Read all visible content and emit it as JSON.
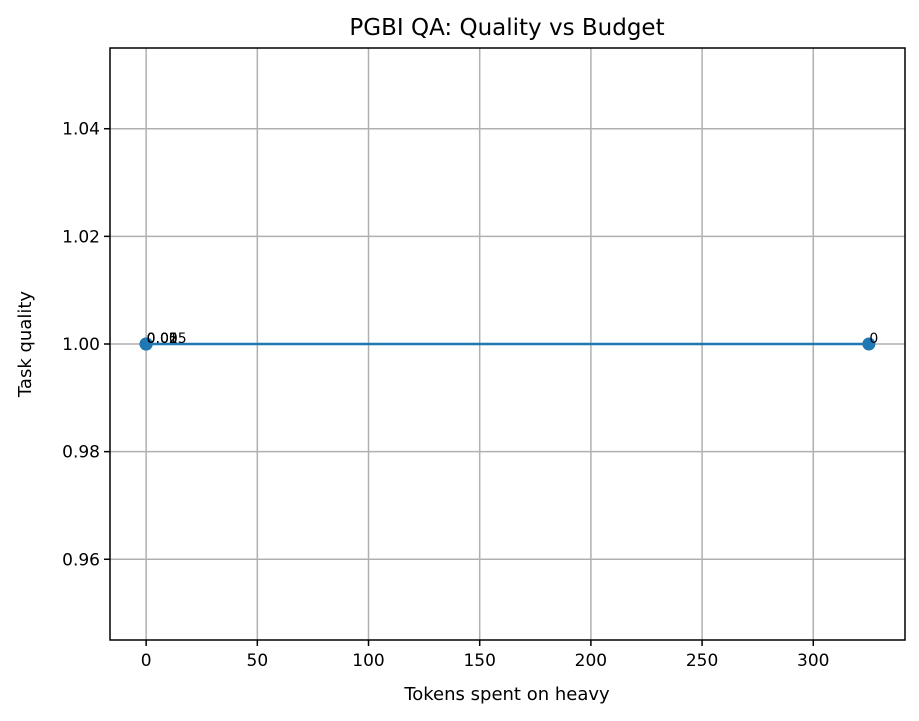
{
  "chart_data": {
    "type": "line",
    "title": "PGBI QA: Quality vs Budget",
    "xlabel": "Tokens spent on heavy",
    "ylabel": "Task quality",
    "xlim": [
      -16.25,
      341.25
    ],
    "ylim": [
      0.945,
      1.055
    ],
    "xticks": [
      0,
      50,
      100,
      150,
      200,
      250,
      300
    ],
    "yticks": [
      0.96,
      0.98,
      1.0,
      1.02,
      1.04
    ],
    "ytick_labels": [
      "0.96",
      "0.98",
      "1.00",
      "1.02",
      "1.04"
    ],
    "grid": true,
    "series": [
      {
        "color": "#1f77b4",
        "points": [
          {
            "x": 0,
            "y": 1.0,
            "label": "0.005"
          },
          {
            "x": 0,
            "y": 1.0,
            "label": "0.01"
          },
          {
            "x": 0,
            "y": 1.0,
            "label": "0.02"
          },
          {
            "x": 0,
            "y": 1.0,
            "label": "0.05"
          },
          {
            "x": 325,
            "y": 1.0,
            "label": "0"
          }
        ]
      }
    ]
  }
}
